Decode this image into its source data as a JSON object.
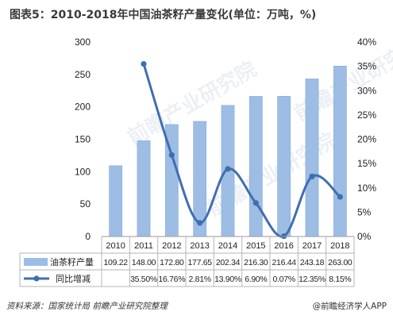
{
  "title": "图表5：2010-2018年中国油茶籽产量变化(单位：万吨，%)",
  "source": "资料来源：国家统计局 前瞻产业研究院整理",
  "brand": "@前瞻经济学人APP",
  "watermark": "前瞻产业研究院",
  "colors": {
    "bar": "#9dbde4",
    "bar_edge": "#7fa6d6",
    "line": "#3f6fb0",
    "grid": "#d6d6d6"
  },
  "chart_data": {
    "type": "bar",
    "categories": [
      "2010",
      "2011",
      "2012",
      "2013",
      "2014",
      "2015",
      "2016",
      "2017",
      "2018"
    ],
    "series": [
      {
        "name": "油茶籽产量",
        "type": "bar",
        "axis": "left",
        "values": [
          109.22,
          148.0,
          172.8,
          177.65,
          202.34,
          216.3,
          216.44,
          243.18,
          263.0
        ],
        "labels": [
          "109.22",
          "148.00",
          "172.80",
          "177.65",
          "202.34",
          "216.30",
          "216.44",
          "243.18",
          "263.00"
        ]
      },
      {
        "name": "同比增减",
        "type": "line",
        "axis": "right",
        "values": [
          null,
          35.5,
          16.76,
          2.81,
          13.9,
          6.9,
          0.07,
          12.35,
          8.15
        ],
        "labels": [
          "",
          "35.50%",
          "16.76%",
          "2.81%",
          "13.90%",
          "6.90%",
          "0.07%",
          "12.35%",
          "8.15%"
        ]
      }
    ],
    "left_axis": {
      "ticks": [
        "0",
        "50",
        "100",
        "150",
        "200",
        "250",
        "300"
      ],
      "min": 0,
      "max": 300
    },
    "right_axis": {
      "ticks": [
        "0%",
        "5%",
        "10%",
        "15%",
        "20%",
        "25%",
        "30%",
        "35%",
        "40%"
      ],
      "min": 0,
      "max": 40
    },
    "grid": false,
    "legend": "data-table"
  }
}
